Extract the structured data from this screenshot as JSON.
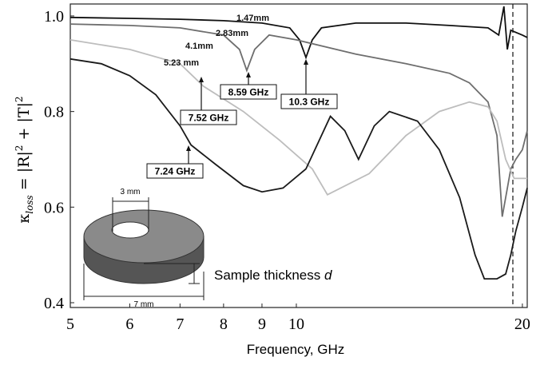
{
  "chart_data": {
    "type": "line",
    "xlabel": "Frequency, GHz",
    "ylabel": [
      "κ",
      "loss",
      " = |R|",
      "2",
      " + |T|",
      "2"
    ],
    "xscale": "log",
    "xlim": [
      5,
      20.3
    ],
    "ylim": [
      0.39,
      1.025
    ],
    "xticks": [
      5,
      6,
      7,
      8,
      9,
      10,
      20
    ],
    "yticks": [
      0.4,
      0.6,
      0.8,
      {
        "value": 1,
        "label": "1.0"
      }
    ],
    "series": [
      {
        "name": "1.47mm",
        "color": "#111111",
        "x": [
          5,
          6,
          7,
          8,
          9,
          9.8,
          10.1,
          10.3,
          10.5,
          10.8,
          12,
          14,
          16,
          18,
          18.6,
          18.9,
          19.1,
          19.3,
          20,
          20.3
        ],
        "values": [
          0.997,
          0.995,
          0.993,
          0.99,
          0.985,
          0.975,
          0.95,
          0.913,
          0.95,
          0.975,
          0.985,
          0.985,
          0.98,
          0.975,
          0.96,
          1.02,
          0.93,
          0.97,
          0.96,
          0.955
        ]
      },
      {
        "name": "2.83mm",
        "color": "#6e6e6e",
        "x": [
          5,
          6,
          7,
          8,
          8.4,
          8.59,
          8.8,
          9.2,
          10,
          12,
          14,
          16,
          17,
          18,
          18.5,
          18.8,
          19,
          19.3,
          19.6,
          20,
          20.3
        ],
        "values": [
          0.983,
          0.98,
          0.975,
          0.96,
          0.93,
          0.886,
          0.93,
          0.96,
          0.95,
          0.92,
          0.9,
          0.88,
          0.86,
          0.82,
          0.75,
          0.58,
          0.62,
          0.68,
          0.7,
          0.72,
          0.76
        ]
      },
      {
        "name": "4.1mm",
        "color": "#bdbdbd",
        "x": [
          5,
          6,
          7,
          7.52,
          8.5,
          9.5,
          10.5,
          11,
          12.5,
          14,
          15.5,
          17,
          18,
          18.5,
          19,
          19.5,
          20.3
        ],
        "values": [
          0.95,
          0.93,
          0.9,
          0.853,
          0.8,
          0.74,
          0.68,
          0.626,
          0.67,
          0.75,
          0.8,
          0.82,
          0.81,
          0.78,
          0.7,
          0.66,
          0.66
        ]
      },
      {
        "name": "5.23 mm",
        "color": "#1a1a1a",
        "x": [
          5,
          5.5,
          6,
          6.5,
          7,
          7.24,
          7.8,
          8.5,
          9,
          9.6,
          10.3,
          11.1,
          11.6,
          12.1,
          12.7,
          13.3,
          14.5,
          15.5,
          16.5,
          17.3,
          17.8,
          18.5,
          19,
          19.3,
          19.6,
          20,
          20.3
        ],
        "values": [
          0.91,
          0.9,
          0.875,
          0.835,
          0.77,
          0.73,
          0.69,
          0.645,
          0.632,
          0.64,
          0.68,
          0.79,
          0.76,
          0.7,
          0.77,
          0.8,
          0.78,
          0.72,
          0.62,
          0.5,
          0.45,
          0.45,
          0.46,
          0.5,
          0.55,
          0.6,
          0.64
        ]
      }
    ],
    "annotations": [
      "8.59 GHz",
      "10.3 GHz",
      "7.52 GHz",
      "7.24 GHz"
    ],
    "inset": {
      "inner": "3 mm",
      "outer": "7 mm",
      "caption": "Sample thickness ",
      "caption_var": "d"
    }
  }
}
